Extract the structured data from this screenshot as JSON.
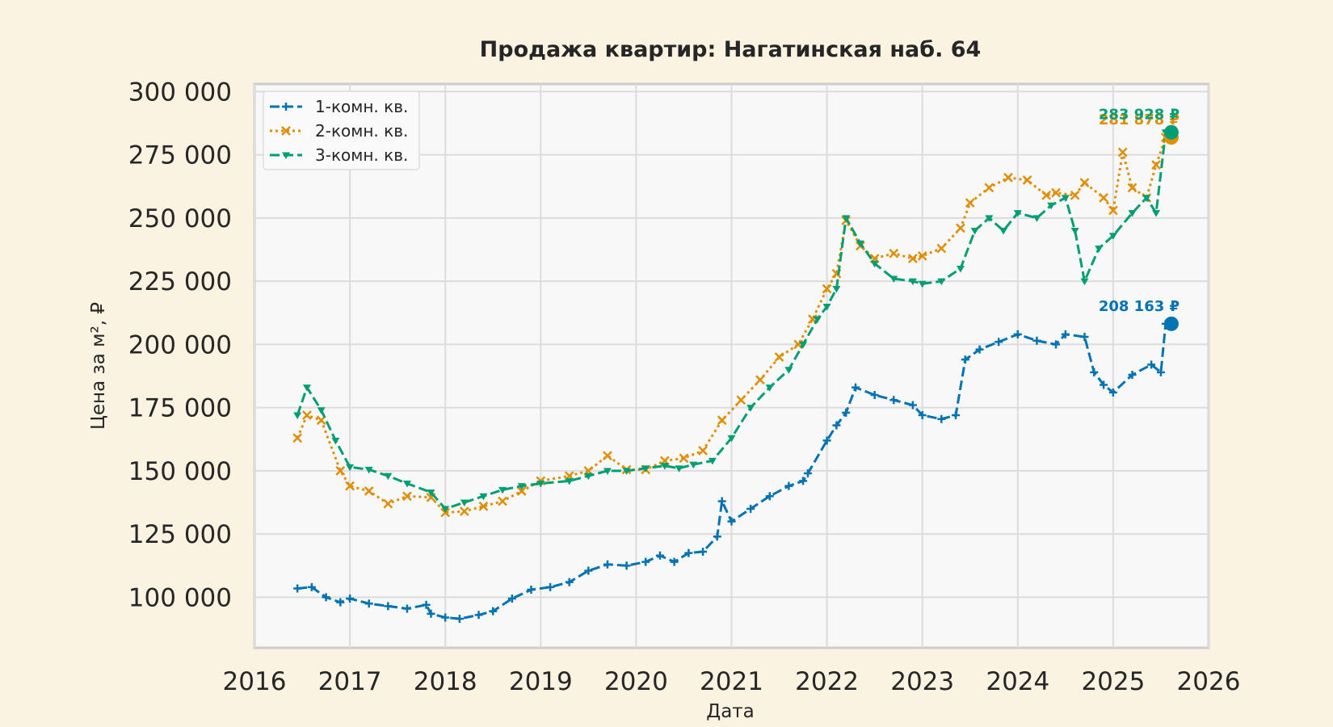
{
  "chart_data": {
    "type": "line",
    "title": "Продажа квартир: Нагатинская наб. 64",
    "xlabel": "Дата",
    "ylabel": "Цена за м², ₽",
    "xlim": [
      2016,
      2026
    ],
    "ylim": [
      80000,
      303000
    ],
    "x_ticks": [
      "2016",
      "2017",
      "2018",
      "2019",
      "2020",
      "2021",
      "2022",
      "2023",
      "2024",
      "2025",
      "2026"
    ],
    "y_ticks": [
      "100 000",
      "125 000",
      "150 000",
      "175 000",
      "200 000",
      "225 000",
      "250 000",
      "275 000",
      "300 000"
    ],
    "grid": true,
    "legend_position": "top-left",
    "series": [
      {
        "name": "1-комн. кв.",
        "color": "#0173b2",
        "dash": "dashed",
        "marker": "plus",
        "last_label": "208 163 ₽",
        "last_value": 208163,
        "x": [
          2016.45,
          2016.6,
          2016.75,
          2016.9,
          2017.0,
          2017.2,
          2017.4,
          2017.6,
          2017.8,
          2017.85,
          2018.0,
          2018.15,
          2018.35,
          2018.5,
          2018.7,
          2018.9,
          2019.1,
          2019.3,
          2019.5,
          2019.7,
          2019.9,
          2020.1,
          2020.25,
          2020.4,
          2020.55,
          2020.7,
          2020.85,
          2020.9,
          2021.0,
          2021.2,
          2021.4,
          2021.6,
          2021.75,
          2021.8,
          2022.0,
          2022.1,
          2022.2,
          2022.3,
          2022.5,
          2022.7,
          2022.9,
          2023.0,
          2023.2,
          2023.35,
          2023.45,
          2023.6,
          2023.8,
          2024.0,
          2024.2,
          2024.4,
          2024.5,
          2024.7,
          2024.8,
          2024.9,
          2025.0,
          2025.2,
          2025.4,
          2025.5,
          2025.55
        ],
        "y": [
          103500,
          104000,
          100000,
          98000,
          99500,
          97500,
          96500,
          95500,
          97000,
          93500,
          92000,
          91500,
          93000,
          94500,
          99500,
          103000,
          104000,
          106000,
          110500,
          113000,
          112500,
          114000,
          116500,
          114000,
          117500,
          118000,
          124000,
          138000,
          130000,
          135000,
          140000,
          144000,
          146000,
          149000,
          162000,
          168000,
          173000,
          183000,
          180000,
          178000,
          176000,
          172000,
          170500,
          172000,
          194000,
          198000,
          201000,
          204000,
          201500,
          200000,
          204000,
          203000,
          189000,
          184000,
          181000,
          188000,
          192000,
          189000,
          208163
        ]
      },
      {
        "name": "2-комн. кв.",
        "color": "#de8f05",
        "dash": "dotted",
        "marker": "x",
        "last_label": "281 878 ₽",
        "last_value": 281878,
        "x": [
          2016.45,
          2016.55,
          2016.7,
          2016.9,
          2017.0,
          2017.2,
          2017.4,
          2017.6,
          2017.85,
          2018.0,
          2018.2,
          2018.4,
          2018.6,
          2018.8,
          2019.0,
          2019.3,
          2019.5,
          2019.7,
          2019.9,
          2020.1,
          2020.3,
          2020.5,
          2020.7,
          2020.9,
          2021.1,
          2021.3,
          2021.5,
          2021.7,
          2021.85,
          2022.0,
          2022.1,
          2022.2,
          2022.35,
          2022.5,
          2022.7,
          2022.9,
          2023.0,
          2023.2,
          2023.4,
          2023.5,
          2023.7,
          2023.9,
          2024.1,
          2024.3,
          2024.4,
          2024.6,
          2024.7,
          2024.9,
          2025.0,
          2025.1,
          2025.2,
          2025.35,
          2025.45,
          2025.55
        ],
        "y": [
          163000,
          172000,
          170000,
          150000,
          144000,
          142000,
          137000,
          140000,
          139500,
          133500,
          134000,
          136000,
          138000,
          142000,
          146000,
          148000,
          150000,
          156000,
          150500,
          150500,
          154000,
          155000,
          158000,
          170000,
          178000,
          186000,
          195000,
          200000,
          210000,
          222000,
          228000,
          249000,
          239000,
          234000,
          236000,
          234000,
          235000,
          238000,
          246000,
          256000,
          262000,
          266000,
          265000,
          259000,
          260000,
          259000,
          264000,
          258000,
          253000,
          276000,
          262000,
          258000,
          271000,
          281878
        ]
      },
      {
        "name": "3-комн. кв.",
        "color": "#029e73",
        "dash": "dashed",
        "marker": "triangle-down",
        "last_label": "283 928 ₽",
        "last_value": 283928,
        "x": [
          2016.45,
          2016.55,
          2016.7,
          2016.85,
          2017.0,
          2017.2,
          2017.4,
          2017.6,
          2017.85,
          2018.0,
          2018.2,
          2018.4,
          2018.6,
          2018.8,
          2019.0,
          2019.3,
          2019.5,
          2019.7,
          2019.9,
          2020.1,
          2020.3,
          2020.45,
          2020.6,
          2020.8,
          2021.0,
          2021.2,
          2021.4,
          2021.6,
          2021.75,
          2021.9,
          2022.0,
          2022.1,
          2022.2,
          2022.35,
          2022.5,
          2022.7,
          2022.9,
          2023.0,
          2023.2,
          2023.4,
          2023.55,
          2023.7,
          2023.85,
          2024.0,
          2024.2,
          2024.35,
          2024.5,
          2024.6,
          2024.7,
          2024.85,
          2025.0,
          2025.2,
          2025.35,
          2025.45,
          2025.55
        ],
        "y": [
          172000,
          183000,
          174000,
          162000,
          151500,
          150500,
          148000,
          145000,
          141500,
          135000,
          137500,
          140000,
          142500,
          144000,
          145000,
          146000,
          148000,
          150000,
          150000,
          151000,
          152000,
          151000,
          152500,
          154000,
          163000,
          175000,
          183000,
          190000,
          200000,
          210000,
          215000,
          222000,
          250000,
          240000,
          232000,
          226000,
          225000,
          224000,
          225000,
          230000,
          245000,
          250000,
          245000,
          252000,
          250000,
          255000,
          258000,
          245000,
          225000,
          238000,
          243000,
          252000,
          258000,
          252000,
          283928
        ]
      }
    ]
  }
}
